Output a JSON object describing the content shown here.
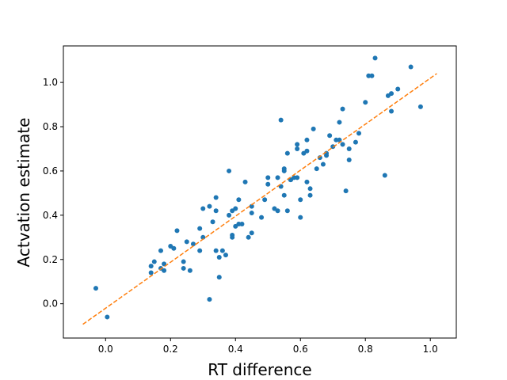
{
  "chart_data": {
    "type": "scatter",
    "xlabel": "RT difference",
    "ylabel": "Actvation estimate",
    "xlim": [
      -0.13,
      1.08
    ],
    "ylim": [
      -0.155,
      1.165
    ],
    "xticks": [
      0.0,
      0.2,
      0.4,
      0.6,
      0.8,
      1.0
    ],
    "xtick_labels": [
      "0.0",
      "0.2",
      "0.4",
      "0.6",
      "0.8",
      "1.0"
    ],
    "yticks": [
      0.0,
      0.2,
      0.4,
      0.6,
      0.8,
      1.0
    ],
    "ytick_labels": [
      "0.0",
      "0.2",
      "0.4",
      "0.6",
      "0.8",
      "1.0"
    ],
    "grid": false,
    "legend": false,
    "colors": {
      "points": "#1f77b4",
      "fit_line": "#ff7f0e"
    },
    "series": [
      {
        "kind": "points",
        "points": [
          [
            -0.03,
            0.07
          ],
          [
            0.005,
            -0.06
          ],
          [
            0.14,
            0.14
          ],
          [
            0.14,
            0.17
          ],
          [
            0.15,
            0.19
          ],
          [
            0.17,
            0.24
          ],
          [
            0.17,
            0.16
          ],
          [
            0.18,
            0.15
          ],
          [
            0.18,
            0.18
          ],
          [
            0.2,
            0.26
          ],
          [
            0.21,
            0.25
          ],
          [
            0.22,
            0.33
          ],
          [
            0.24,
            0.16
          ],
          [
            0.24,
            0.19
          ],
          [
            0.25,
            0.28
          ],
          [
            0.26,
            0.15
          ],
          [
            0.27,
            0.27
          ],
          [
            0.29,
            0.24
          ],
          [
            0.29,
            0.34
          ],
          [
            0.3,
            0.3
          ],
          [
            0.3,
            0.43
          ],
          [
            0.32,
            0.02
          ],
          [
            0.32,
            0.44
          ],
          [
            0.33,
            0.37
          ],
          [
            0.34,
            0.48
          ],
          [
            0.34,
            0.42
          ],
          [
            0.34,
            0.24
          ],
          [
            0.35,
            0.21
          ],
          [
            0.35,
            0.12
          ],
          [
            0.36,
            0.24
          ],
          [
            0.37,
            0.22
          ],
          [
            0.38,
            0.4
          ],
          [
            0.38,
            0.6
          ],
          [
            0.39,
            0.31
          ],
          [
            0.39,
            0.3
          ],
          [
            0.39,
            0.42
          ],
          [
            0.4,
            0.43
          ],
          [
            0.4,
            0.35
          ],
          [
            0.41,
            0.36
          ],
          [
            0.41,
            0.47
          ],
          [
            0.42,
            0.36
          ],
          [
            0.43,
            0.55
          ],
          [
            0.44,
            0.3
          ],
          [
            0.45,
            0.32
          ],
          [
            0.45,
            0.44
          ],
          [
            0.45,
            0.41
          ],
          [
            0.48,
            0.39
          ],
          [
            0.49,
            0.47
          ],
          [
            0.5,
            0.54
          ],
          [
            0.5,
            0.57
          ],
          [
            0.52,
            0.43
          ],
          [
            0.53,
            0.57
          ],
          [
            0.53,
            0.42
          ],
          [
            0.54,
            0.53
          ],
          [
            0.54,
            0.83
          ],
          [
            0.55,
            0.6
          ],
          [
            0.55,
            0.61
          ],
          [
            0.55,
            0.49
          ],
          [
            0.56,
            0.68
          ],
          [
            0.56,
            0.42
          ],
          [
            0.57,
            0.56
          ],
          [
            0.57,
            0.56
          ],
          [
            0.58,
            0.57
          ],
          [
            0.59,
            0.7
          ],
          [
            0.59,
            0.72
          ],
          [
            0.59,
            0.57
          ],
          [
            0.6,
            0.47
          ],
          [
            0.6,
            0.39
          ],
          [
            0.61,
            0.68
          ],
          [
            0.62,
            0.55
          ],
          [
            0.62,
            0.69
          ],
          [
            0.62,
            0.74
          ],
          [
            0.63,
            0.49
          ],
          [
            0.63,
            0.52
          ],
          [
            0.64,
            0.79
          ],
          [
            0.65,
            0.61
          ],
          [
            0.66,
            0.66
          ],
          [
            0.67,
            0.63
          ],
          [
            0.68,
            0.68
          ],
          [
            0.68,
            0.67
          ],
          [
            0.69,
            0.76
          ],
          [
            0.7,
            0.71
          ],
          [
            0.71,
            0.74
          ],
          [
            0.72,
            0.82
          ],
          [
            0.72,
            0.74
          ],
          [
            0.73,
            0.72
          ],
          [
            0.73,
            0.88
          ],
          [
            0.74,
            0.51
          ],
          [
            0.75,
            0.7
          ],
          [
            0.75,
            0.65
          ],
          [
            0.77,
            0.73
          ],
          [
            0.78,
            0.77
          ],
          [
            0.8,
            0.91
          ],
          [
            0.81,
            1.03
          ],
          [
            0.82,
            1.03
          ],
          [
            0.83,
            1.11
          ],
          [
            0.86,
            0.58
          ],
          [
            0.87,
            0.94
          ],
          [
            0.88,
            0.95
          ],
          [
            0.88,
            0.87
          ],
          [
            0.9,
            0.97
          ],
          [
            0.94,
            1.07
          ],
          [
            0.97,
            0.89
          ]
        ]
      },
      {
        "kind": "line",
        "style": "dashed",
        "points": [
          [
            -0.07,
            -0.093
          ],
          [
            1.02,
            1.04
          ]
        ]
      }
    ]
  }
}
